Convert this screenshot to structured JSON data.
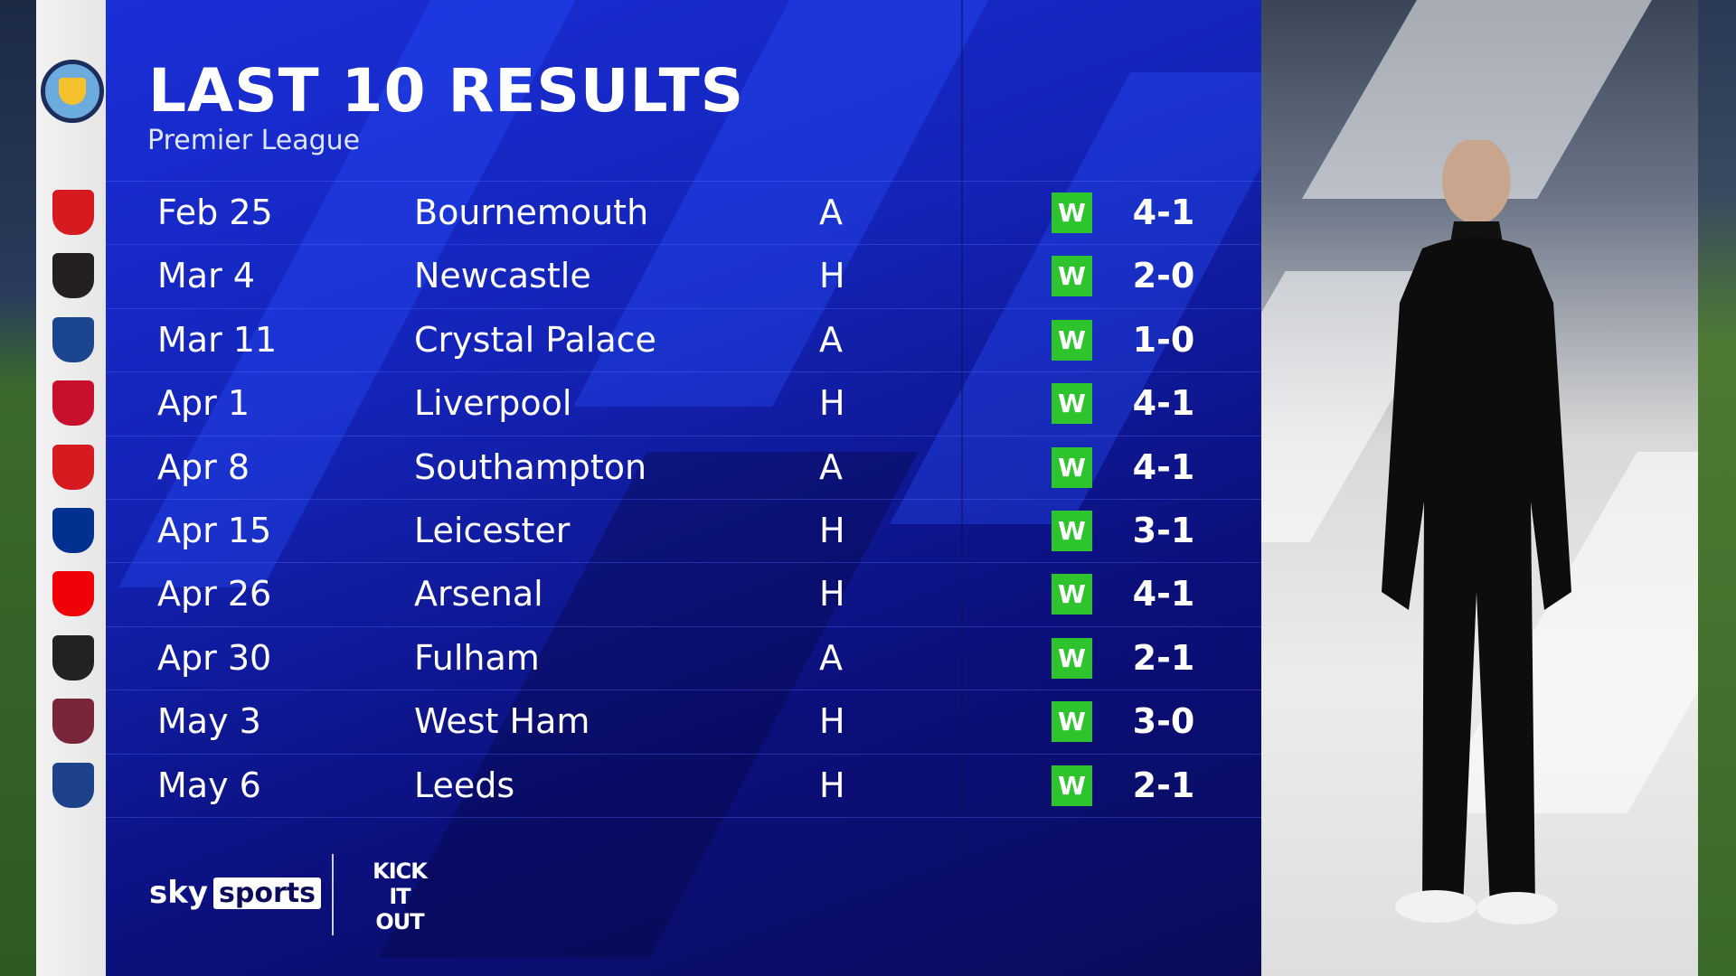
{
  "header": {
    "title": "LAST 10 RESULTS",
    "subtitle": "Premier League"
  },
  "team_badge": "manchester-city-crest",
  "results": [
    {
      "date": "Feb 25",
      "opponent": "Bournemouth",
      "venue": "A",
      "result": "W",
      "score": "4-1",
      "crest_color": "#d71920"
    },
    {
      "date": "Mar 4",
      "opponent": "Newcastle",
      "venue": "H",
      "result": "W",
      "score": "2-0",
      "crest_color": "#241f20"
    },
    {
      "date": "Mar 11",
      "opponent": "Crystal Palace",
      "venue": "A",
      "result": "W",
      "score": "1-0",
      "crest_color": "#1b458f"
    },
    {
      "date": "Apr 1",
      "opponent": "Liverpool",
      "venue": "H",
      "result": "W",
      "score": "4-1",
      "crest_color": "#c8102e"
    },
    {
      "date": "Apr 8",
      "opponent": "Southampton",
      "venue": "A",
      "result": "W",
      "score": "4-1",
      "crest_color": "#d71920"
    },
    {
      "date": "Apr 15",
      "opponent": "Leicester",
      "venue": "H",
      "result": "W",
      "score": "3-1",
      "crest_color": "#003090"
    },
    {
      "date": "Apr 26",
      "opponent": "Arsenal",
      "venue": "H",
      "result": "W",
      "score": "4-1",
      "crest_color": "#ef0107"
    },
    {
      "date": "Apr 30",
      "opponent": "Fulham",
      "venue": "A",
      "result": "W",
      "score": "2-1",
      "crest_color": "#222222"
    },
    {
      "date": "May 3",
      "opponent": "West Ham",
      "venue": "H",
      "result": "W",
      "score": "3-0",
      "crest_color": "#7a263a"
    },
    {
      "date": "May 6",
      "opponent": "Leeds",
      "venue": "H",
      "result": "W",
      "score": "2-1",
      "crest_color": "#1d428a"
    }
  ],
  "colors": {
    "win": "#2ec42e",
    "panel": "#1424b8"
  },
  "footer": {
    "sky": "sky",
    "sports": "sports",
    "kick_it_out": "KICK IT OUT"
  }
}
